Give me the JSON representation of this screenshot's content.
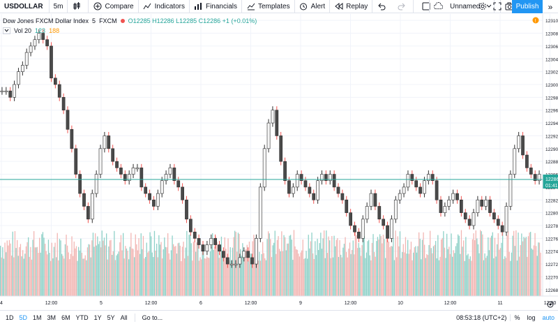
{
  "toolbar": {
    "symbol": "USDOLLAR",
    "interval": "5m",
    "compare": "Compare",
    "indicators": "Indicators",
    "financials": "Financials",
    "templates": "Templates",
    "alert": "Alert",
    "replay": "Replay",
    "layout_name": "Unnamed",
    "publish": "Publish"
  },
  "legend": {
    "title": "Dow Jones FXCM Dollar Index",
    "interval": "5",
    "exchange": "FXCM",
    "ohlc": "O12285  H12286  L12285  C12286  +1 (+0.01%)",
    "vol_label": "Vol 20",
    "vol_val1": "123",
    "vol_val2": "188"
  },
  "price_axis": {
    "ticks": [
      "12310",
      "12308",
      "12306",
      "12304",
      "12302",
      "12300",
      "12298",
      "12296",
      "12294",
      "12292",
      "12290",
      "12288",
      "12286",
      "12284",
      "12282",
      "12280",
      "12278",
      "12276",
      "12274",
      "12272",
      "12270",
      "12268"
    ],
    "last_price": "12286",
    "countdown": "01:41"
  },
  "time_axis": {
    "labels": [
      "4",
      "12:00",
      "5",
      "12:00",
      "6",
      "12:00",
      "9",
      "12:00",
      "10",
      "12:00",
      "11",
      "12:00"
    ]
  },
  "bottom": {
    "ranges": [
      "1D",
      "5D",
      "1M",
      "3M",
      "6M",
      "YTD",
      "1Y",
      "5Y",
      "All"
    ],
    "active_range": "5D",
    "goto": "Go to...",
    "clock": "08:53:18 (UTC+2)",
    "percent": "%",
    "log": "log",
    "auto": "auto"
  },
  "colors": {
    "up": "#26a69a",
    "down": "#ef5350",
    "candle": "#4a4a4a",
    "vol_up": "#8fd1c8",
    "vol_down": "#f2b6b3",
    "accent": "#2196f3"
  },
  "chart_data": {
    "type": "line",
    "series": [
      {
        "values": [
          12299,
          12299,
          12298,
          12300,
          12302,
          12303,
          12305,
          12306,
          12307,
          12308,
          12307,
          12306,
          12301,
          12300,
          12298,
          12296,
          12293,
          12290,
          12286,
          12283,
          12281,
          12279,
          12283,
          12286,
          12290,
          12292,
          12290,
          12288,
          12287,
          12286,
          12285,
          12286,
          12287,
          12287,
          12284,
          12283,
          12282,
          12281,
          12283,
          12285,
          12286,
          12287,
          12285,
          12284,
          12282,
          12279,
          12277,
          12276,
          12275,
          12274,
          12275,
          12276,
          12275,
          12274,
          12273,
          12272,
          12272,
          12272,
          12273,
          12274,
          12273,
          12272,
          12276,
          12284,
          12290,
          12294,
          12296,
          12292,
          12288,
          12285,
          12283,
          12284,
          12286,
          12285,
          12284,
          12283,
          12282,
          12285,
          12286,
          12285,
          12286,
          12284,
          12283,
          12282,
          12280,
          12278,
          12277,
          12276,
          12279,
          12281,
          12283,
          12281,
          12279,
          12278,
          12276,
          12279,
          12282,
          12283,
          12284,
          12286,
          12285,
          12284,
          12283,
          12285,
          12286,
          12285,
          12282,
          12280,
          12281,
          12282,
          12283,
          12282,
          12280,
          12279,
          12278,
          12280,
          12282,
          12281,
          12282,
          12280,
          12279,
          12278,
          12277,
          12281,
          12286,
          12290,
          12292,
          12289,
          12287,
          12286,
          12285,
          12286
        ]
      }
    ],
    "ylim": [
      12267,
      12311
    ]
  }
}
